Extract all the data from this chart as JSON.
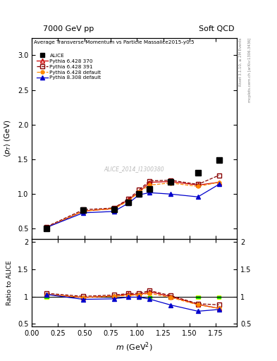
{
  "title_left": "7000 GeV pp",
  "title_right": "Soft QCD",
  "plot_title": "Average Transverse Momentum vs Particle Mass",
  "plot_subtitle": "alice2015-y0.5",
  "ylabel_main": "<p_T> (GeV)",
  "ylabel_ratio": "Ratio to ALICE",
  "xlabel": "m (GeV$^2$)",
  "watermark": "ALICE_2014_I1300380",
  "right_label": "mcplots.cern.ch [arXiv:1306.3436]",
  "right_label2": "Rivet 3.1.10, ≥ 2M Events",
  "alice_x": [
    0.14,
    0.49,
    0.78,
    0.92,
    1.02,
    1.12,
    1.32,
    1.58,
    1.78
  ],
  "alice_y": [
    0.5,
    0.77,
    0.78,
    0.88,
    1.0,
    1.07,
    1.18,
    1.31,
    1.49
  ],
  "py6_370_x": [
    0.14,
    0.49,
    0.78,
    0.92,
    1.02,
    1.12,
    1.32,
    1.58,
    1.78
  ],
  "py6_370_y": [
    0.52,
    0.755,
    0.79,
    0.92,
    1.03,
    1.17,
    1.18,
    1.13,
    1.17
  ],
  "py6_391_x": [
    0.14,
    0.49,
    0.78,
    0.92,
    1.02,
    1.12,
    1.32,
    1.58,
    1.78
  ],
  "py6_391_y": [
    0.53,
    0.775,
    0.8,
    0.93,
    1.06,
    1.19,
    1.2,
    1.14,
    1.27
  ],
  "py6_def_x": [
    0.14,
    0.49,
    0.78,
    0.92,
    1.02,
    1.12,
    1.32,
    1.58,
    1.78
  ],
  "py6_def_y": [
    0.52,
    0.755,
    0.79,
    0.9,
    1.03,
    1.13,
    1.16,
    1.11,
    1.17
  ],
  "py8_def_x": [
    0.14,
    0.49,
    0.78,
    0.92,
    1.02,
    1.12,
    1.32,
    1.58,
    1.78
  ],
  "py8_def_y": [
    0.52,
    0.73,
    0.75,
    0.87,
    0.99,
    1.02,
    1.0,
    0.96,
    1.14
  ],
  "ratio_py6_370": [
    1.04,
    0.985,
    1.01,
    1.045,
    1.03,
    1.09,
    1.0,
    0.86,
    0.785
  ],
  "ratio_py6_391": [
    1.06,
    1.005,
    1.03,
    1.055,
    1.06,
    1.11,
    1.02,
    0.87,
    0.85
  ],
  "ratio_py6_def": [
    1.04,
    0.985,
    1.01,
    1.02,
    1.03,
    1.06,
    0.985,
    0.85,
    0.785
  ],
  "ratio_py8_def": [
    1.04,
    0.95,
    0.96,
    0.99,
    0.99,
    0.955,
    0.847,
    0.733,
    0.765
  ],
  "color_py6_370": "#cc0000",
  "color_py6_391": "#880000",
  "color_py6_def": "#ff8800",
  "color_py8_def": "#0000cc",
  "alice_color": "#000000",
  "ylim_main": [
    0.35,
    3.25
  ],
  "ylim_ratio": [
    0.45,
    2.05
  ],
  "xlim": [
    0.0,
    1.95
  ],
  "band_x": [
    0.14,
    1.02,
    1.12,
    1.32,
    1.58,
    1.78
  ],
  "band_yellow_half": 0.018
}
